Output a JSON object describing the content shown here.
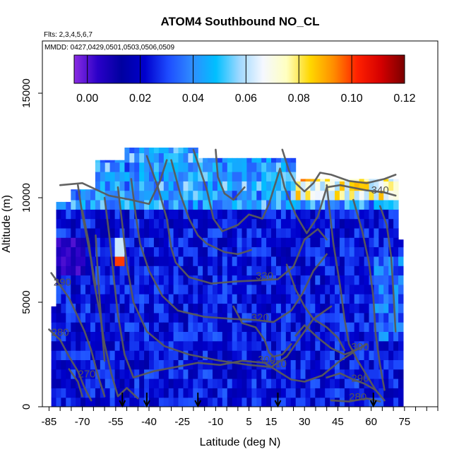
{
  "chart_data": {
    "type": "heatmap",
    "title": "ATOM4 Southbound NO_CL",
    "notes": [
      "Flts: 2,3,4,5,6,7",
      "MMDD: 0427,0429,0501,0503,0506,0509"
    ],
    "xlabel": "Latitude (deg N)",
    "ylabel": "Altitude (m)",
    "xlim": [
      -88,
      90
    ],
    "ylim": [
      0,
      17500
    ],
    "x_ticks": [
      -85,
      -70,
      -55,
      -40,
      -25,
      -10,
      5,
      15,
      30,
      45,
      60,
      75
    ],
    "x_minor_step": 5,
    "y_ticks": [
      0,
      5000,
      10000,
      15000
    ],
    "colorbar": {
      "range": [
        -0.005,
        0.12
      ],
      "ticks": [
        "0.00",
        "0.02",
        "0.04",
        "0.06",
        "0.08",
        "0.10",
        "0.12"
      ],
      "tick_values": [
        0,
        0.02,
        0.04,
        0.06,
        0.08,
        0.1,
        0.12
      ],
      "colors": [
        "#8a2be2",
        "#2a00c8",
        "#0000a0",
        "#0000cd",
        "#1e4dff",
        "#2f8cff",
        "#00bfff",
        "#9fd8ff",
        "#f5f8ff",
        "#ffffc0",
        "#ffd700",
        "#ff8c00",
        "#ff2000",
        "#d40000",
        "#7a0000"
      ]
    },
    "flight_markers_lat": [
      -52,
      -41,
      -18,
      18,
      61
    ],
    "contour_labels": [
      {
        "text": "340",
        "lat": 64,
        "alt": 10200
      },
      {
        "text": "330",
        "lat": 12,
        "alt": 6100
      },
      {
        "text": "320",
        "lat": 10,
        "alt": 4100
      },
      {
        "text": "310",
        "lat": 18,
        "alt": 1900
      },
      {
        "text": "300",
        "lat": 13,
        "alt": 2100
      },
      {
        "text": "300",
        "lat": 55,
        "alt": 2700
      },
      {
        "text": "290",
        "lat": -79,
        "alt": 5800
      },
      {
        "text": "290",
        "lat": 55,
        "alt": 1200
      },
      {
        "text": "280",
        "lat": -80,
        "alt": 3400
      },
      {
        "text": "280",
        "lat": 54,
        "alt": 300
      },
      {
        "text": "270",
        "lat": -68,
        "alt": 1400
      }
    ]
  }
}
